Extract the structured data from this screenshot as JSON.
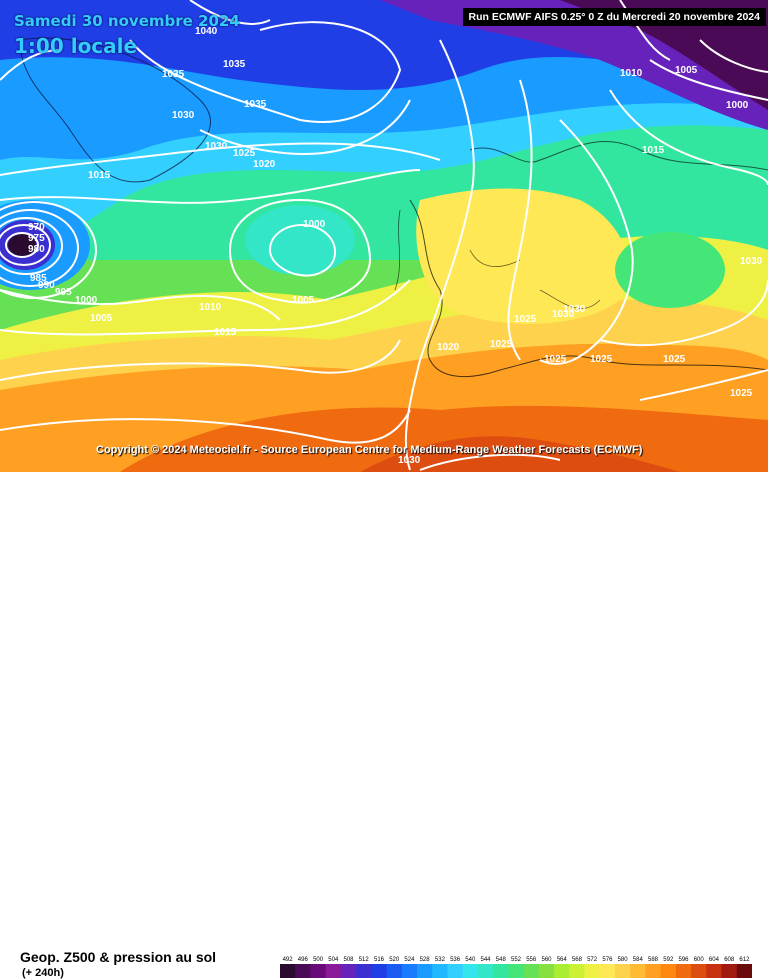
{
  "header": {
    "date_line": "Samedi 30 novembre 2024",
    "time_line": "1:00 locale",
    "run_info": "Run ECMWF AIFS 0.25° 0 Z du Mercredi 20 novembre 2024"
  },
  "copyright": "Copyright © 2024 Meteociel.fr - Source European Centre for Medium-Range Weather Forecasts (ECMWF)",
  "footer": {
    "title": "Geop. Z500 & pression au sol",
    "subtitle": "(+ 240h)"
  },
  "legend": {
    "ticks": [
      "492",
      "496",
      "500",
      "504",
      "508",
      "512",
      "516",
      "520",
      "524",
      "528",
      "532",
      "536",
      "540",
      "544",
      "548",
      "552",
      "556",
      "560",
      "564",
      "568",
      "572",
      "576",
      "580",
      "584",
      "588",
      "592",
      "596",
      "600",
      "604",
      "608",
      "612"
    ],
    "colors": [
      "#2a0a2e",
      "#4a0a55",
      "#6a0a7a",
      "#8a1a9a",
      "#6622bb",
      "#3b2fd1",
      "#1f3ee6",
      "#1a5cf2",
      "#1a7bff",
      "#1a9bff",
      "#22b8ff",
      "#33d0ff",
      "#33e6ee",
      "#33e6c8",
      "#33e6a0",
      "#44e678",
      "#66e055",
      "#88e040",
      "#aaee33",
      "#ccf033",
      "#eef044",
      "#ffe855",
      "#ffd24d",
      "#ffbb33",
      "#ffa022",
      "#ff8811",
      "#f06a10",
      "#dd4d10",
      "#c83010",
      "#a01a10",
      "#6a0a0a"
    ]
  },
  "isobars": [
    "1040",
    "1035",
    "1035",
    "1035",
    "1030",
    "1030",
    "1025",
    "1020",
    "1015",
    "970",
    "975",
    "980",
    "985",
    "990",
    "995",
    "1000",
    "1005",
    "1000",
    "1005",
    "1010",
    "1015",
    "1010",
    "1005",
    "1000",
    "1015",
    "1030",
    "1025",
    "1020",
    "1025",
    "1030",
    "1025",
    "1025",
    "1025",
    "1030",
    "1025",
    "1030"
  ]
}
